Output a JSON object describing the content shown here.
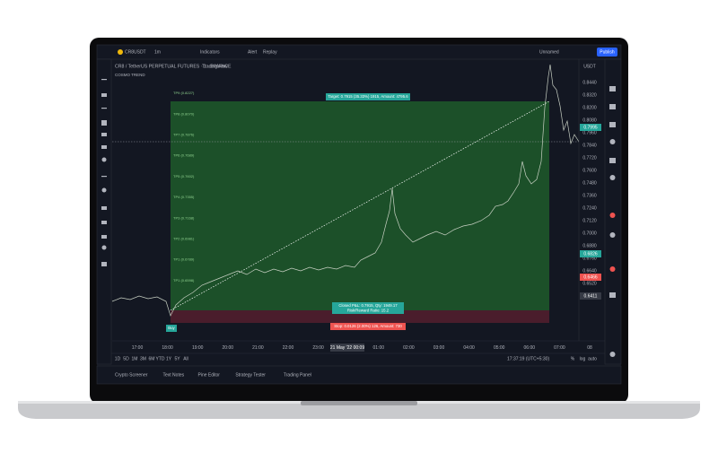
{
  "toolbar": {
    "symbol": "CR8USDT",
    "interval": "1m",
    "indicators": "Indicators",
    "alert": "Alert",
    "replay": "Replay",
    "layout": "Unnamed",
    "publish": "Publish"
  },
  "symbol_bar": {
    "title": "CR8 / TetherUS PERPETUAL FUTURES · 1 · BINANCE",
    "source": "TradingView",
    "indicator": "COSMO TREND"
  },
  "price_axis": {
    "currency": "USDT",
    "labels": [
      "0.8440",
      "0.8320",
      "0.8200",
      "0.8080",
      "0.7960",
      "0.7840",
      "0.7720",
      "0.7600",
      "0.7480",
      "0.7360",
      "0.7240",
      "0.7120",
      "0.7000",
      "0.6880",
      "0.6760",
      "0.6640",
      "0.6520"
    ],
    "badges": [
      {
        "text": "0.7995",
        "color": "#26a69a"
      },
      {
        "text": "0.6826",
        "color": "#26a69a"
      },
      {
        "text": "0.6466",
        "color": "#ef5350"
      },
      {
        "text": "0.6411",
        "color": "#363a45"
      }
    ]
  },
  "trade": {
    "target": "Target: 0.7915 (35.33%) 1915, Amount: 4795.6",
    "closed": "Closed P&L: 0.7915, Qty: 1949.17",
    "risk_reward": "Risk/Reward Ratio: 15.2",
    "stop": "Stop: 0.0126 (2.00%) 126, Amount: 730",
    "entry": "Buy",
    "take_profits": [
      "TP9 (0.8227)",
      "TP8 (0.8070)",
      "TP7 (0.7876)",
      "TP6 (0.7689)",
      "TP5 (0.7602)",
      "TP4 (0.7355)",
      "TP3 (0.7168)",
      "TP2 (0.6981)",
      "TP1 (0.6789)",
      "TP1 (0.6598)"
    ]
  },
  "time_axis": {
    "labels": [
      "17:00",
      "18:00",
      "19:00",
      "20:00",
      "21:00",
      "22:00",
      "23:00",
      "01:00",
      "02:00",
      "03:00",
      "04:00",
      "05:00",
      "06:00",
      "07:00",
      "08"
    ],
    "current": "21 May '22  00:09"
  },
  "ranges": [
    "1D",
    "5D",
    "1M",
    "3M",
    "6M",
    "YTD",
    "1Y",
    "5Y",
    "All"
  ],
  "clock": "17:37:19 (UTC+5:30)",
  "scale": [
    "%",
    "log",
    "auto"
  ],
  "panels": [
    "Crypto Screener",
    "Text Notes",
    "Pine Editor",
    "Strategy Tester",
    "Trading Panel"
  ]
}
